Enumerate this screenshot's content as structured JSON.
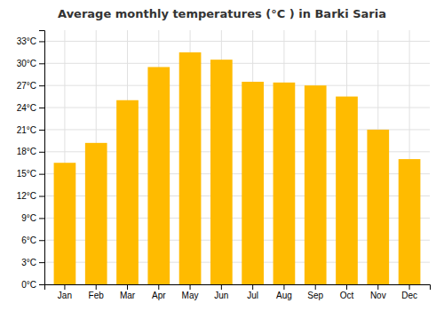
{
  "chart_data": {
    "type": "bar",
    "title": "Average monthly temperatures (°C ) in Barki Saria",
    "categories": [
      "Jan",
      "Feb",
      "Mar",
      "Apr",
      "May",
      "Jun",
      "Jul",
      "Aug",
      "Sep",
      "Oct",
      "Nov",
      "Dec"
    ],
    "values": [
      16.5,
      19.2,
      25.0,
      29.5,
      31.5,
      30.5,
      27.5,
      27.4,
      27.0,
      25.5,
      21.0,
      17.0
    ],
    "color": "#FFBB00",
    "ylim": [
      0,
      34.5
    ],
    "yticks": [
      {
        "value": 0,
        "label": "0°C"
      },
      {
        "value": 3,
        "label": "3°C"
      },
      {
        "value": 6,
        "label": "6°C"
      },
      {
        "value": 9,
        "label": "9°C"
      },
      {
        "value": 12,
        "label": "12°C"
      },
      {
        "value": 15,
        "label": "15°C"
      },
      {
        "value": 18,
        "label": "18°C"
      },
      {
        "value": 21,
        "label": "21°C"
      },
      {
        "value": 24,
        "label": "24°C"
      },
      {
        "value": 27,
        "label": "27°C"
      },
      {
        "value": 30,
        "label": "30°C"
      },
      {
        "value": 33,
        "label": "33°C"
      }
    ],
    "grid": true
  }
}
